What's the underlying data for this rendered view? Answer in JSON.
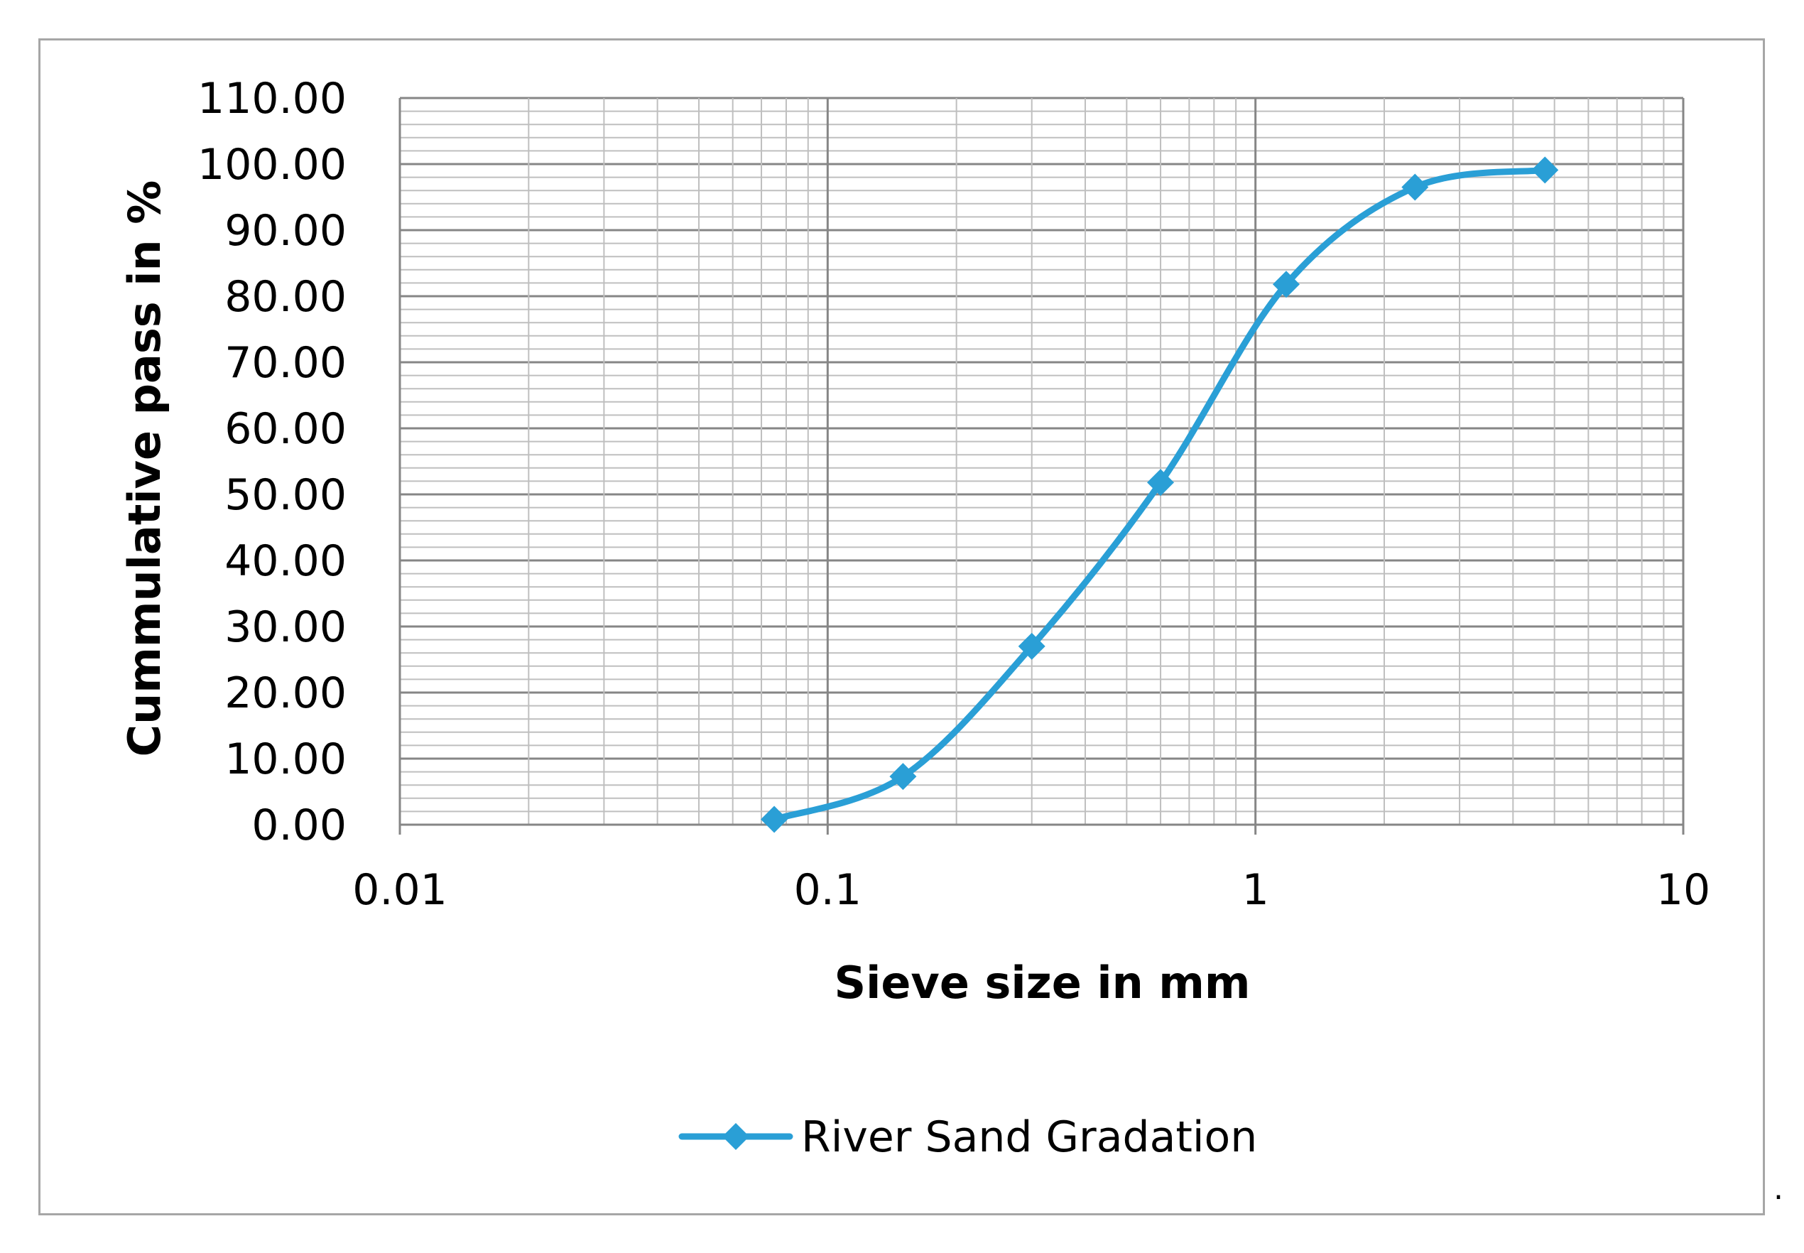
{
  "chart_data": {
    "type": "line",
    "title": "",
    "xlabel": "Sieve size in mm",
    "ylabel": "Cummulative pass in %",
    "x_scale": "log",
    "xlim": [
      0.01,
      10
    ],
    "ylim": [
      0,
      110
    ],
    "x_ticks": [
      "0.01",
      "0.1",
      "1",
      "10"
    ],
    "y_ticks": [
      "0.00",
      "10.00",
      "20.00",
      "30.00",
      "40.00",
      "50.00",
      "60.00",
      "70.00",
      "80.00",
      "90.00",
      "100.00",
      "110.00"
    ],
    "grid": true,
    "smooth": true,
    "legend_position": "bottom",
    "series": [
      {
        "name": "River Sand Gradation",
        "color": "#2a9fd6",
        "marker": "diamond",
        "x": [
          0.075,
          0.15,
          0.3,
          0.6,
          1.18,
          2.36,
          4.75
        ],
        "y": [
          0.8,
          7.3,
          27.0,
          51.8,
          81.8,
          96.5,
          99.1
        ]
      }
    ]
  },
  "trailing_mark": "."
}
